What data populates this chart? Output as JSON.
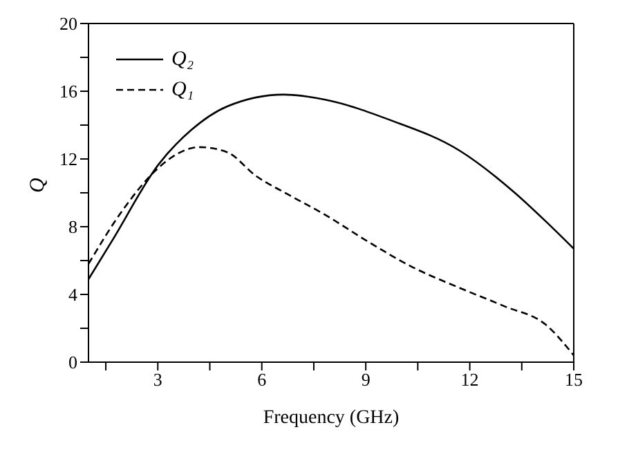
{
  "chart_data": {
    "type": "line",
    "xlabel": "Frequency  (GHz)",
    "ylabel": "Q",
    "xlim": [
      1,
      15
    ],
    "ylim": [
      0,
      20
    ],
    "xticks": [
      {
        "value": 1.5,
        "label": null
      },
      3,
      {
        "value": 4.5,
        "label": null
      },
      6,
      {
        "value": 7.5,
        "label": null
      },
      9,
      {
        "value": 10.5,
        "label": null
      },
      12,
      {
        "value": 13.5,
        "label": null
      },
      15
    ],
    "yticks": [
      0,
      {
        "value": 2,
        "label": null
      },
      4,
      {
        "value": 6,
        "label": null
      },
      8,
      {
        "value": 10,
        "label": null
      },
      12,
      {
        "value": 14,
        "label": null
      },
      16,
      {
        "value": 18,
        "label": null
      },
      20
    ],
    "legend": "top left",
    "marker": "none",
    "series": [
      {
        "name": "Q₂",
        "color": "#000000",
        "line_style": "solid",
        "x": [
          1.0,
          1.69,
          3.03,
          3.96,
          5.0,
          6.63,
          7.83,
          9.7,
          11.7,
          13.3,
          14.2,
          15
        ],
        "values": [
          4.9,
          7.2,
          11.7,
          13.7,
          15.1,
          15.8,
          15.5,
          14.3,
          12.5,
          10.0,
          8.3,
          6.7
        ]
      },
      {
        "name": "Q₁",
        "color": "#000000",
        "line_style": "dashed",
        "x": [
          1.0,
          1.96,
          3.03,
          3.56,
          4.2,
          5.0,
          5.83,
          6.76,
          7.83,
          9.0,
          10.36,
          11.69,
          13.0,
          14.2,
          15
        ],
        "values": [
          5.8,
          8.9,
          11.5,
          12.3,
          12.7,
          12.4,
          11.0,
          9.9,
          8.7,
          7.2,
          5.6,
          4.4,
          3.3,
          2.2,
          0.4
        ]
      }
    ]
  }
}
